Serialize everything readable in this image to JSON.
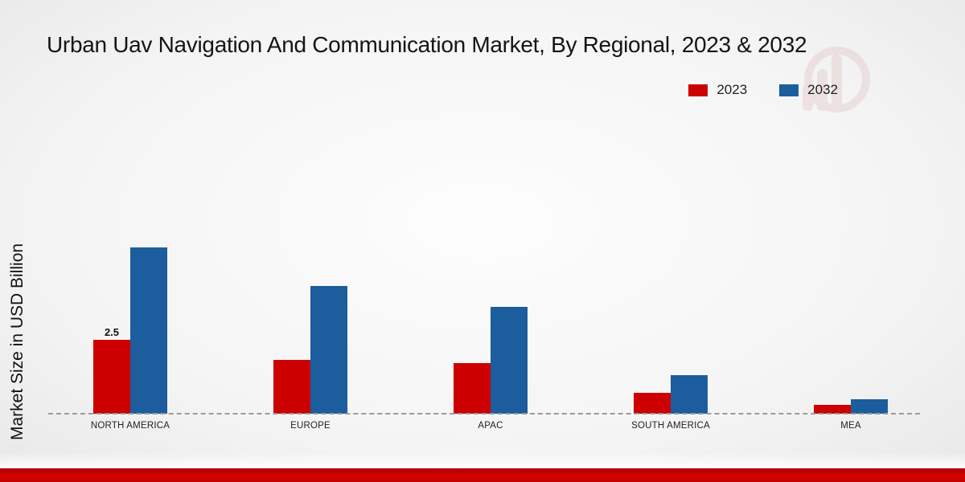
{
  "title": "Urban Uav Navigation And Communication Market, By Regional, 2023 & 2032",
  "y_axis_label": "Market Size in USD Billion",
  "legend": [
    {
      "label": "2023",
      "color": "#cc0001"
    },
    {
      "label": "2032",
      "color": "#1b5d9d"
    }
  ],
  "chart_data": {
    "type": "bar",
    "categories": [
      "NORTH AMERICA",
      "EUROPE",
      "APAC",
      "SOUTH AMERICA",
      "MEA"
    ],
    "series": [
      {
        "name": "2023",
        "color": "#cc0001",
        "values": [
          2.5,
          1.8,
          1.7,
          0.7,
          0.3
        ]
      },
      {
        "name": "2032",
        "color": "#1b5d9d",
        "values": [
          5.6,
          4.3,
          3.6,
          1.3,
          0.5
        ]
      }
    ],
    "value_labels": [
      {
        "series": "2023",
        "category": "NORTH AMERICA",
        "text": "2.5"
      }
    ],
    "title": "Urban Uav Navigation And Communication Market, By Regional, 2023 & 2032",
    "xlabel": "",
    "ylabel": "Market Size in USD Billion",
    "ylim": [
      0,
      6.5
    ],
    "grid": false,
    "baseline_style": "dashed",
    "legend_position": "top-right",
    "accent_bottom_bar_color": "#c40000"
  }
}
